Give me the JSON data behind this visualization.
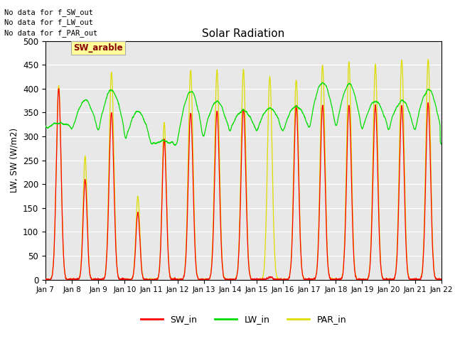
{
  "title": "Solar Radiation",
  "ylabel": "LW, SW (W/m2)",
  "ylim": [
    0,
    500
  ],
  "xlim": [
    0,
    15
  ],
  "xtick_labels": [
    "Jan 7",
    "Jan 8",
    "Jan 9",
    "Jan 10",
    "Jan 11",
    "Jan 12",
    "Jan 13",
    "Jan 14",
    "Jan 15",
    "Jan 16",
    "Jan 17",
    "Jan 18",
    "Jan 19",
    "Jan 20",
    "Jan 21",
    "Jan 22"
  ],
  "xtick_positions": [
    0,
    1,
    2,
    3,
    4,
    5,
    6,
    7,
    8,
    9,
    10,
    11,
    12,
    13,
    14,
    15
  ],
  "no_data_texts": [
    "No data for f_SW_out",
    "No data for f_LW_out",
    "No data for f_PAR_out"
  ],
  "sw_arable_label": "SW_arable",
  "legend_entries": [
    "SW_in",
    "LW_in",
    "PAR_in"
  ],
  "sw_color": "#ff0000",
  "lw_color": "#00dd00",
  "par_color": "#dddd00",
  "bg_color": "#e8e8e8",
  "fig_bg": "#ffffff",
  "grid_color": "#ffffff",
  "n_points": 3000,
  "x_days": 15.0,
  "sw_peaks": [
    400,
    210,
    350,
    140,
    295,
    350,
    355,
    360,
    5,
    365,
    365,
    365,
    365,
    365,
    370
  ],
  "par_peaks": [
    408,
    260,
    435,
    175,
    330,
    440,
    440,
    440,
    425,
    420,
    450,
    455,
    450,
    460,
    462
  ],
  "spike_widths": [
    0.18,
    0.15,
    0.18,
    0.15,
    0.16,
    0.18,
    0.18,
    0.18,
    0.18,
    0.18,
    0.18,
    0.18,
    0.18,
    0.18,
    0.18
  ],
  "lw_base": [
    318,
    308,
    308,
    283,
    283,
    288,
    302,
    312,
    308,
    312,
    318,
    312,
    312,
    312,
    308
  ],
  "lw_peak": [
    328,
    375,
    398,
    353,
    288,
    393,
    373,
    353,
    358,
    363,
    413,
    408,
    373,
    373,
    398
  ]
}
